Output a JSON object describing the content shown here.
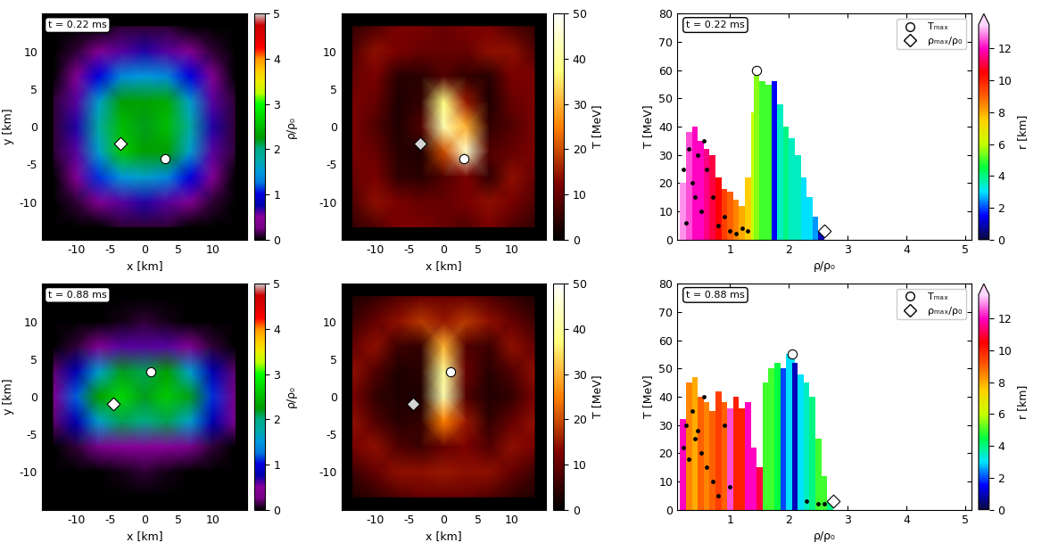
{
  "chart_data": [
    {
      "type": "heatmap",
      "annotation": "t = 0.22 ms",
      "xlabel": "x [km]",
      "ylabel": "y [km]",
      "xlim": [
        -15,
        15
      ],
      "ylim": [
        -15,
        15
      ],
      "xticks": [
        -10,
        -5,
        0,
        5,
        10
      ],
      "yticks": [
        -10,
        -5,
        0,
        5,
        10
      ],
      "x": [
        -13.3,
        -10,
        -6.7,
        -3.3,
        0,
        3.3,
        6.7,
        10,
        13.3
      ],
      "y": [
        13.3,
        10,
        6.7,
        3.3,
        0,
        -3.3,
        -6.7,
        -10,
        -13.3
      ],
      "cells": [
        [
          0,
          0,
          0,
          0.1,
          0.1,
          0.1,
          0,
          0,
          0
        ],
        [
          0,
          0.1,
          0.4,
          0.6,
          0.7,
          0.6,
          0.4,
          0.1,
          0
        ],
        [
          0,
          0.4,
          1.0,
          1.4,
          1.5,
          1.4,
          1.0,
          0.4,
          0
        ],
        [
          0.1,
          0.6,
          1.6,
          2.3,
          2.3,
          2.4,
          1.6,
          0.6,
          0.1
        ],
        [
          0.1,
          0.7,
          1.8,
          2.5,
          2.2,
          2.5,
          1.8,
          0.7,
          0.1
        ],
        [
          0.1,
          0.6,
          1.6,
          2.6,
          2.3,
          2.3,
          1.6,
          0.6,
          0.1
        ],
        [
          0,
          0.4,
          1.1,
          1.5,
          1.6,
          1.4,
          1.0,
          0.4,
          0
        ],
        [
          0,
          0.1,
          0.4,
          0.6,
          0.7,
          0.6,
          0.4,
          0.1,
          0
        ],
        [
          0,
          0,
          0,
          0.1,
          0.1,
          0.1,
          0,
          0,
          0
        ]
      ],
      "colorbar_label": "ρ/ρ₀",
      "clim": [
        0,
        5
      ],
      "cticks": [
        0,
        1,
        2,
        3,
        4,
        5
      ],
      "series": [
        {
          "marker": "diamond",
          "color": "white",
          "x": [
            -3.5
          ],
          "values": [
            -2.2
          ]
        },
        {
          "marker": "circle",
          "color": "white",
          "x": [
            3
          ],
          "values": [
            -4.2
          ]
        }
      ]
    },
    {
      "type": "heatmap",
      "xlabel": "x [km]",
      "xlim": [
        -15,
        15
      ],
      "ylim": [
        -15,
        15
      ],
      "xticks": [
        -10,
        -5,
        0,
        5,
        10
      ],
      "yticks": [
        -10,
        -5,
        0,
        5,
        10
      ],
      "x": [
        -13.3,
        -10,
        -6.7,
        -3.3,
        0,
        3.3,
        6.7,
        10,
        13.3
      ],
      "y": [
        13.3,
        10,
        6.7,
        3.3,
        0,
        -3.3,
        -6.7,
        -10,
        -13.3
      ],
      "cells": [
        [
          5,
          8,
          12,
          12,
          10,
          12,
          12,
          8,
          5
        ],
        [
          8,
          14,
          12,
          10,
          10,
          10,
          14,
          14,
          8
        ],
        [
          10,
          12,
          4,
          4,
          8,
          5,
          4,
          12,
          12
        ],
        [
          12,
          10,
          3,
          5,
          38,
          15,
          3,
          10,
          12
        ],
        [
          12,
          8,
          3,
          8,
          42,
          30,
          5,
          8,
          12
        ],
        [
          12,
          10,
          4,
          3,
          20,
          45,
          8,
          10,
          12
        ],
        [
          10,
          12,
          5,
          4,
          8,
          12,
          5,
          14,
          10
        ],
        [
          8,
          14,
          12,
          10,
          10,
          12,
          14,
          12,
          8
        ],
        [
          5,
          8,
          12,
          12,
          10,
          8,
          12,
          8,
          5
        ]
      ],
      "colorbar_label": "T [MeV]",
      "clim": [
        0,
        50
      ],
      "cticks": [
        0,
        10,
        20,
        30,
        40,
        50
      ],
      "series": [
        {
          "marker": "diamond",
          "color": "lightgray",
          "x": [
            -3.5
          ],
          "values": [
            -2.2
          ]
        },
        {
          "marker": "circle",
          "color": "white",
          "x": [
            3
          ],
          "values": [
            -4.2
          ]
        }
      ]
    },
    {
      "type": "bar",
      "annotation": "t = 0.22 ms",
      "xlabel": "ρ/ρ₀",
      "ylabel": "T [MeV]",
      "xlim": [
        0.1,
        5.1
      ],
      "xticks": [
        1,
        2,
        3,
        4,
        5
      ],
      "ylim": [
        0,
        80
      ],
      "yticks": [
        0,
        10,
        20,
        30,
        40,
        50,
        60,
        70,
        80
      ],
      "x": [
        0.2,
        0.3,
        0.4,
        0.5,
        0.6,
        0.7,
        0.8,
        0.9,
        1.0,
        1.1,
        1.2,
        1.3,
        1.4,
        1.45,
        1.55,
        1.65,
        1.75,
        1.85,
        1.95,
        2.05,
        2.15,
        2.25,
        2.35,
        2.45,
        2.55
      ],
      "values": [
        20,
        38,
        40,
        35,
        32,
        30,
        22,
        18,
        17,
        14,
        12,
        22,
        45,
        60,
        56,
        55,
        56,
        48,
        40,
        36,
        30,
        22,
        15,
        8,
        3
      ],
      "r": [
        13,
        12.5,
        12,
        12,
        11.5,
        11,
        10.5,
        9.5,
        9,
        8.5,
        8,
        7.5,
        6,
        5.5,
        5,
        5,
        1.5,
        3.5,
        4,
        3.5,
        3.5,
        3,
        3,
        2.5,
        1
      ],
      "colorbar_label": "r [km]",
      "clim": [
        0,
        13.5
      ],
      "cticks": [
        0,
        2,
        4,
        6,
        8,
        10,
        12
      ],
      "particles": {
        "x": [
          0.2,
          0.3,
          0.35,
          0.45,
          0.5,
          0.6,
          0.7,
          0.8,
          0.9,
          1.0,
          1.1,
          1.2,
          0.25,
          0.55,
          1.3,
          0.4
        ],
        "values": [
          25,
          32,
          20,
          30,
          10,
          25,
          15,
          5,
          8,
          3,
          2,
          4,
          6,
          35,
          3,
          15
        ]
      },
      "series": [
        {
          "name": "Tₘₐₓ",
          "marker": "circle",
          "color": "white",
          "x": [
            1.45
          ],
          "values": [
            60
          ]
        },
        {
          "name": "ρₘₐₓ/ρ₀",
          "marker": "diamond",
          "color": "white",
          "x": [
            2.6
          ],
          "values": [
            3
          ]
        }
      ],
      "legend": "upper right"
    },
    {
      "type": "heatmap",
      "annotation": "t = 0.88 ms",
      "xlabel": "x [km]",
      "ylabel": "y [km]",
      "xlim": [
        -15,
        15
      ],
      "ylim": [
        -15,
        15
      ],
      "xticks": [
        -10,
        -5,
        0,
        5,
        10
      ],
      "yticks": [
        -10,
        -5,
        0,
        5,
        10
      ],
      "x": [
        -13.3,
        -10,
        -6.7,
        -3.3,
        0,
        3.3,
        6.7,
        10,
        13.3
      ],
      "y": [
        13.3,
        10,
        6.7,
        3.3,
        0,
        -3.3,
        -6.7,
        -10,
        -13.3
      ],
      "cells": [
        [
          0,
          0,
          0,
          0,
          0,
          0,
          0,
          0,
          0
        ],
        [
          0,
          0,
          0,
          0.05,
          0.1,
          0.05,
          0,
          0,
          0
        ],
        [
          0,
          0.1,
          0.4,
          0.6,
          0.6,
          0.6,
          0.4,
          0.1,
          0
        ],
        [
          0.2,
          0.8,
          1.6,
          2.2,
          2.1,
          2.3,
          1.6,
          0.8,
          0.2
        ],
        [
          0.4,
          1.2,
          2.3,
          2.7,
          2.2,
          2.6,
          2.2,
          1.1,
          0.3
        ],
        [
          0.2,
          0.8,
          1.6,
          2.1,
          2.0,
          2.1,
          1.6,
          0.8,
          0.3
        ],
        [
          0,
          0.1,
          0.3,
          0.5,
          0.5,
          0.5,
          0.3,
          0.1,
          0
        ],
        [
          0,
          0,
          0,
          0.05,
          0.1,
          0.05,
          0,
          0,
          0
        ],
        [
          0,
          0,
          0,
          0,
          0,
          0,
          0,
          0,
          0
        ]
      ],
      "colorbar_label": "ρ/ρ₀",
      "clim": [
        0,
        5
      ],
      "cticks": [
        0,
        1,
        2,
        3,
        4,
        5
      ],
      "series": [
        {
          "marker": "diamond",
          "color": "white",
          "x": [
            -4.5
          ],
          "values": [
            -1
          ]
        },
        {
          "marker": "circle",
          "color": "white",
          "x": [
            1
          ],
          "values": [
            3.3
          ]
        }
      ]
    },
    {
      "type": "heatmap",
      "xlabel": "x [km]",
      "xlim": [
        -15,
        15
      ],
      "ylim": [
        -15,
        15
      ],
      "xticks": [
        -10,
        -5,
        0,
        5,
        10
      ],
      "yticks": [
        -10,
        -5,
        0,
        5,
        10
      ],
      "x": [
        -13.3,
        -10,
        -6.7,
        -3.3,
        0,
        3.3,
        6.7,
        10,
        13.3
      ],
      "y": [
        13.3,
        10,
        6.7,
        3.3,
        0,
        -3.3,
        -6.7,
        -10,
        -13.3
      ],
      "cells": [
        [
          3,
          5,
          8,
          10,
          10,
          10,
          8,
          5,
          3
        ],
        [
          6,
          10,
          14,
          18,
          15,
          18,
          14,
          10,
          6
        ],
        [
          10,
          14,
          6,
          5,
          30,
          8,
          6,
          14,
          10
        ],
        [
          14,
          8,
          3,
          4,
          40,
          10,
          4,
          8,
          14
        ],
        [
          12,
          5,
          3,
          3,
          42,
          8,
          3,
          5,
          12
        ],
        [
          14,
          8,
          4,
          5,
          25,
          15,
          5,
          10,
          14
        ],
        [
          12,
          14,
          8,
          6,
          10,
          12,
          8,
          14,
          12
        ],
        [
          6,
          10,
          14,
          14,
          15,
          14,
          14,
          10,
          6
        ],
        [
          3,
          5,
          8,
          10,
          10,
          10,
          8,
          5,
          3
        ]
      ],
      "colorbar_label": "T [MeV]",
      "clim": [
        0,
        50
      ],
      "cticks": [
        0,
        10,
        20,
        30,
        40,
        50
      ],
      "series": [
        {
          "marker": "diamond",
          "color": "lightgray",
          "x": [
            -4.5
          ],
          "values": [
            -1
          ]
        },
        {
          "marker": "circle",
          "color": "white",
          "x": [
            1
          ],
          "values": [
            3.3
          ]
        }
      ]
    },
    {
      "type": "bar",
      "annotation": "t = 0.88 ms",
      "xlabel": "ρ/ρ₀",
      "ylabel": "T [MeV]",
      "xlim": [
        0.1,
        5.1
      ],
      "xticks": [
        1,
        2,
        3,
        4,
        5
      ],
      "ylim": [
        0,
        80
      ],
      "yticks": [
        0,
        10,
        20,
        30,
        40,
        50,
        60,
        70,
        80
      ],
      "x": [
        0.2,
        0.3,
        0.4,
        0.5,
        0.6,
        0.7,
        0.8,
        0.9,
        1.0,
        1.1,
        1.2,
        1.3,
        1.4,
        1.5,
        1.6,
        1.7,
        1.8,
        1.9,
        2.0,
        2.05,
        2.1,
        2.2,
        2.3,
        2.4,
        2.5,
        2.6,
        2.7
      ],
      "values": [
        32,
        45,
        47,
        40,
        38,
        35,
        42,
        38,
        36,
        40,
        36,
        38,
        22,
        15,
        45,
        50,
        52,
        50,
        55,
        55,
        52,
        48,
        45,
        40,
        25,
        12,
        3
      ],
      "r": [
        12,
        8.5,
        8,
        9,
        8.5,
        9,
        9.5,
        9,
        12.5,
        10,
        10,
        12,
        12,
        11,
        5,
        5,
        4.5,
        2,
        3,
        3,
        1,
        3,
        3.5,
        4,
        5,
        5,
        4
      ],
      "colorbar_label": "r [km]",
      "clim": [
        0,
        13.5
      ],
      "cticks": [
        0,
        2,
        4,
        6,
        8,
        10,
        12
      ],
      "particles": {
        "x": [
          0.2,
          0.25,
          0.3,
          0.35,
          0.4,
          0.45,
          0.5,
          0.6,
          0.7,
          0.8,
          0.9,
          1.0,
          2.3,
          2.5,
          2.6,
          0.55
        ],
        "values": [
          22,
          30,
          18,
          35,
          25,
          28,
          20,
          15,
          10,
          5,
          30,
          8,
          3,
          2,
          2,
          40
        ]
      },
      "series": [
        {
          "name": "Tₘₐₓ",
          "marker": "circle",
          "color": "white",
          "x": [
            2.05
          ],
          "values": [
            55
          ]
        },
        {
          "name": "ρₘₐₓ/ρ₀",
          "marker": "diamond",
          "color": "white",
          "x": [
            2.75
          ],
          "values": [
            3
          ]
        }
      ],
      "legend": "upper right"
    }
  ]
}
